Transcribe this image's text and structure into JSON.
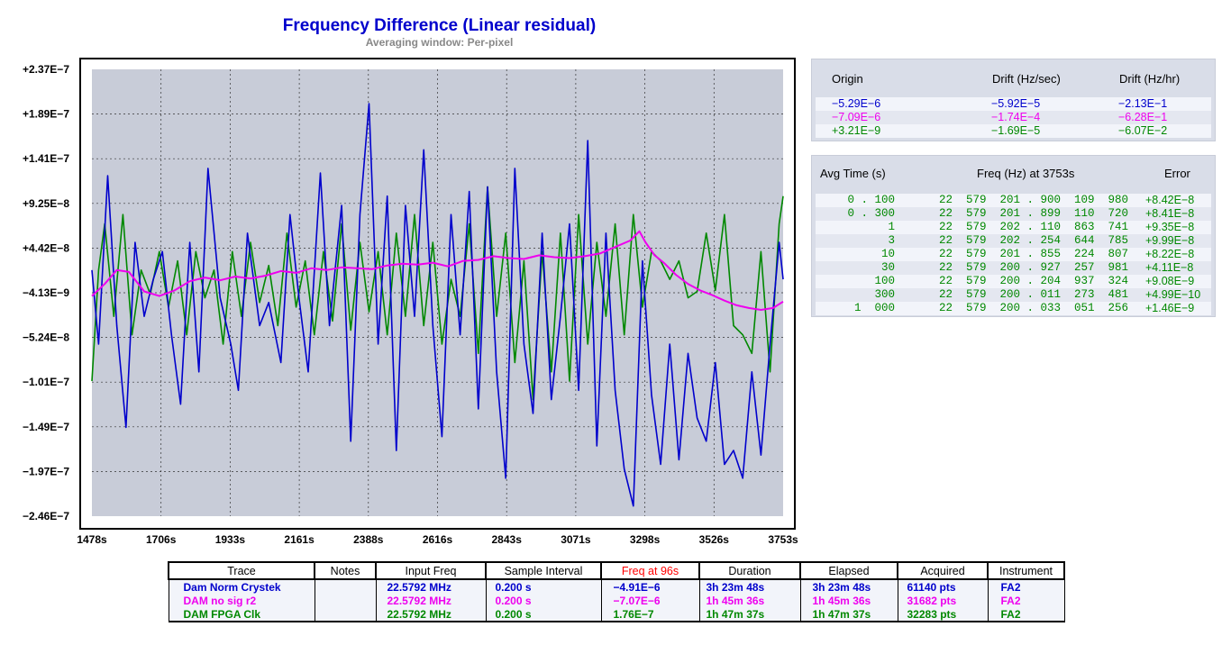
{
  "chart_data": {
    "type": "line",
    "title": "Frequency Difference (Linear residual)",
    "subtitle": "Averaging window: Per-pixel",
    "x_ticks": [
      "1478s",
      "1706s",
      "1933s",
      "2161s",
      "2388s",
      "2616s",
      "2843s",
      "3071s",
      "3298s",
      "3526s",
      "3753s"
    ],
    "y_ticks": [
      "+2.37E−7",
      "+1.89E−7",
      "+1.41E−7",
      "+9.25E−8",
      "+4.42E−8",
      "−4.13E−9",
      "−5.24E−8",
      "−1.01E−7",
      "−1.49E−7",
      "−1.97E−7",
      "−2.46E−7"
    ],
    "xlim": [
      1478,
      3753
    ],
    "ylim": [
      -2.46e-07,
      2.37e-07
    ],
    "grid": true,
    "series": [
      {
        "name": "Dam Norm Crystek",
        "color": "#0000cc",
        "x": [
          1478,
          1500,
          1530,
          1560,
          1590,
          1620,
          1650,
          1680,
          1710,
          1740,
          1770,
          1800,
          1830,
          1860,
          1900,
          1935,
          1960,
          1990,
          2030,
          2060,
          2100,
          2130,
          2160,
          2190,
          2230,
          2260,
          2300,
          2330,
          2360,
          2390,
          2420,
          2450,
          2480,
          2510,
          2540,
          2570,
          2600,
          2630,
          2660,
          2690,
          2720,
          2750,
          2780,
          2810,
          2840,
          2870,
          2900,
          2930,
          2960,
          2990,
          3020,
          3050,
          3080,
          3110,
          3140,
          3170,
          3200,
          3230,
          3260,
          3290,
          3320,
          3350,
          3380,
          3410,
          3440,
          3470,
          3500,
          3530,
          3560,
          3590,
          3620,
          3650,
          3680,
          3710,
          3740,
          3753
        ],
        "y": [
          2e-08,
          -6e-08,
          1.22e-07,
          -4e-08,
          -1.5e-07,
          5e-08,
          -3e-08,
          1e-08,
          4e-08,
          -5e-08,
          -1.25e-07,
          5e-08,
          -9e-08,
          1.3e-07,
          -1e-08,
          -6e-08,
          -1.1e-07,
          6e-08,
          -4e-08,
          -1.5e-08,
          -8e-08,
          8e-08,
          -1.1e-08,
          -9e-08,
          1.25e-07,
          -4e-08,
          9e-08,
          -1.65e-07,
          8e-08,
          2e-07,
          -6e-08,
          1e-07,
          -1.75e-07,
          9e-08,
          -3e-08,
          1.5e-07,
          -4e-08,
          -1.6e-07,
          8e-08,
          -5e-08,
          1.05e-07,
          -1.3e-07,
          1.1e-07,
          -9e-08,
          -2.05e-07,
          1.3e-07,
          -6e-08,
          -1.35e-07,
          6e-08,
          -1.2e-07,
          -3e-08,
          7e-08,
          -1.1e-07,
          1.6e-07,
          -1.7e-07,
          6e-08,
          -1.1e-07,
          -1.95e-07,
          -2.35e-07,
          3e-08,
          -1.15e-07,
          -1.9e-07,
          -6e-08,
          -1.85e-07,
          -7e-08,
          -1.4e-07,
          -1.65e-07,
          -8e-08,
          -1.9e-07,
          -1.75e-07,
          -2.05e-07,
          -9e-08,
          -1.8e-07,
          -6e-08,
          5e-08,
          1e-08
        ]
      },
      {
        "name": "DAM no sig r2",
        "color": "#ee00ee",
        "x": [
          1478,
          1520,
          1560,
          1600,
          1650,
          1700,
          1750,
          1800,
          1850,
          1900,
          1950,
          2000,
          2050,
          2100,
          2150,
          2200,
          2250,
          2300,
          2350,
          2400,
          2450,
          2500,
          2550,
          2600,
          2650,
          2700,
          2750,
          2800,
          2850,
          2900,
          2950,
          3000,
          3050,
          3100,
          3150,
          3200,
          3250,
          3280,
          3300,
          3330,
          3360,
          3400,
          3440,
          3480,
          3520,
          3560,
          3600,
          3640,
          3680,
          3720,
          3753
        ],
        "y": [
          -8e-09,
          5e-09,
          2e-08,
          1.8e-08,
          -3e-09,
          -8e-09,
          -2e-09,
          8e-09,
          1.2e-08,
          9e-09,
          1.3e-08,
          1.1e-08,
          1.4e-08,
          1.9e-08,
          1.7e-08,
          2.2e-08,
          2e-08,
          2.3e-08,
          2.2e-08,
          2.1e-08,
          2.5e-08,
          2.7e-08,
          2.6e-08,
          2.8e-08,
          2.4e-08,
          3e-08,
          3.1e-08,
          3.5e-08,
          3.3e-08,
          3.2e-08,
          3.6e-08,
          3.4e-08,
          3.3e-08,
          3.5e-08,
          3.8e-08,
          4.5e-08,
          5.2e-08,
          6.2e-08,
          5e-08,
          3.6e-08,
          2.8e-08,
          1.5e-08,
          5e-09,
          -2e-09,
          -7e-09,
          -1.3e-08,
          -1.8e-08,
          -2.1e-08,
          -2.3e-08,
          -2.1e-08,
          -1.4e-08
        ]
      },
      {
        "name": "DAM FPGA Clk",
        "color": "#008800",
        "x": [
          1478,
          1500,
          1520,
          1550,
          1580,
          1610,
          1640,
          1670,
          1700,
          1730,
          1760,
          1790,
          1820,
          1850,
          1880,
          1910,
          1940,
          1970,
          2000,
          2030,
          2060,
          2090,
          2120,
          2150,
          2180,
          2210,
          2240,
          2270,
          2300,
          2330,
          2360,
          2390,
          2420,
          2450,
          2480,
          2510,
          2540,
          2570,
          2600,
          2630,
          2660,
          2690,
          2720,
          2750,
          2780,
          2810,
          2840,
          2870,
          2900,
          2930,
          2960,
          2990,
          3020,
          3050,
          3080,
          3110,
          3140,
          3170,
          3200,
          3230,
          3260,
          3290,
          3320,
          3350,
          3380,
          3410,
          3440,
          3470,
          3500,
          3530,
          3560,
          3590,
          3620,
          3650,
          3680,
          3710,
          3740,
          3753
        ],
        "y": [
          -1e-07,
          2e-08,
          7e-08,
          -3e-08,
          8e-08,
          -5e-08,
          2e-08,
          -6e-09,
          4e-08,
          -2e-08,
          3e-08,
          -5e-08,
          4e-08,
          -1e-08,
          2e-08,
          -6e-08,
          4e-08,
          -3e-08,
          5e-08,
          -1.5e-08,
          2.5e-08,
          -4e-08,
          6e-08,
          -2e-08,
          3e-08,
          -5e-08,
          4e-08,
          -3.5e-08,
          7e-08,
          -4.5e-08,
          5e-08,
          -2.5e-08,
          4e-08,
          -5e-08,
          6e-08,
          -3e-08,
          8e-08,
          -4e-08,
          5e-08,
          -6e-08,
          1e-08,
          -3e-08,
          7e-08,
          -7e-08,
          1.1e-07,
          -3e-08,
          6e-08,
          -8e-08,
          3e-08,
          -1.2e-07,
          4e-08,
          -9e-08,
          6e-08,
          -1e-07,
          8e-08,
          -6e-08,
          5e-08,
          -3e-08,
          7e-08,
          -5e-08,
          8e-08,
          -2e-08,
          4e-08,
          3e-08,
          1e-08,
          3e-08,
          -1e-08,
          -3e-09,
          6e-08,
          -2e-09,
          8e-08,
          -4e-08,
          -5e-08,
          -7e-08,
          4e-08,
          -9e-08,
          7e-08,
          1e-07
        ]
      }
    ]
  },
  "drift_panel": {
    "headers": [
      "Origin",
      "Drift (Hz/sec)",
      "Drift (Hz/hr)"
    ],
    "rows": [
      {
        "origin": "−5.29E−6",
        "drift_sec": "−5.92E−5",
        "drift_hr": "−2.13E−1",
        "color": "#0000cc"
      },
      {
        "origin": "−7.09E−6",
        "drift_sec": "−1.74E−4",
        "drift_hr": "−6.28E−1",
        "color": "#ee00ee"
      },
      {
        "origin": "+3.21E−9",
        "drift_sec": "−1.69E−5",
        "drift_hr": "−6.07E−2",
        "color": "#008800"
      }
    ]
  },
  "avg_panel": {
    "headers": [
      "Avg Time (s)",
      "Freq (Hz) at 3753s",
      "Error"
    ],
    "color": "#008800",
    "rows": [
      {
        "avg": "0 . 100",
        "freq": "22  579  201 . 900  109  980",
        "err": "+8.42E−8"
      },
      {
        "avg": "0 . 300",
        "freq": "22  579  201 . 899  110  720",
        "err": "+8.41E−8"
      },
      {
        "avg": "1",
        "freq": "22  579  202 . 110  863  741",
        "err": "+9.35E−8"
      },
      {
        "avg": "3",
        "freq": "22  579  202 . 254  644  785",
        "err": "+9.99E−8"
      },
      {
        "avg": "10",
        "freq": "22  579  201 . 855  224  807",
        "err": "+8.22E−8"
      },
      {
        "avg": "30",
        "freq": "22  579  200 . 927  257  981",
        "err": "+4.11E−8"
      },
      {
        "avg": "100",
        "freq": "22  579  200 . 204  937  324",
        "err": "+9.08E−9"
      },
      {
        "avg": "300",
        "freq": "22  579  200 . 011  273  481",
        "err": "+4.99E−10"
      },
      {
        "avg": "1  000",
        "freq": "22  579  200 . 033  051  256",
        "err": "+1.46E−9"
      }
    ]
  },
  "trace_table": {
    "headers": [
      "Trace",
      "Notes",
      "Input Freq",
      "Sample Interval",
      "Freq at 96s",
      "Duration",
      "Elapsed",
      "Acquired",
      "Instrument"
    ],
    "highlight_header_color": "#ff0000",
    "rows": [
      {
        "color": "#0000cc",
        "trace": "Dam Norm Crystek",
        "notes": "",
        "input": "22.5792 MHz",
        "interval": "0.200 s",
        "freq": "−4.91E−6",
        "duration": "3h 23m 48s",
        "elapsed": "3h 23m 48s",
        "acquired": "61140 pts",
        "instrument": "FA2"
      },
      {
        "color": "#ee00ee",
        "trace": "DAM no sig r2",
        "notes": "",
        "input": "22.5792 MHz",
        "interval": "0.200 s",
        "freq": "−7.07E−6",
        "duration": "1h 45m 36s",
        "elapsed": "1h 45m 36s",
        "acquired": "31682 pts",
        "instrument": "FA2"
      },
      {
        "color": "#008800",
        "trace": "DAM FPGA Clk",
        "notes": "",
        "input": "22.5792 MHz",
        "interval": "0.200 s",
        "freq": "1.76E−7",
        "duration": "1h 47m 37s",
        "elapsed": "1h 47m 37s",
        "acquired": "32283 pts",
        "instrument": "FA2"
      }
    ]
  }
}
